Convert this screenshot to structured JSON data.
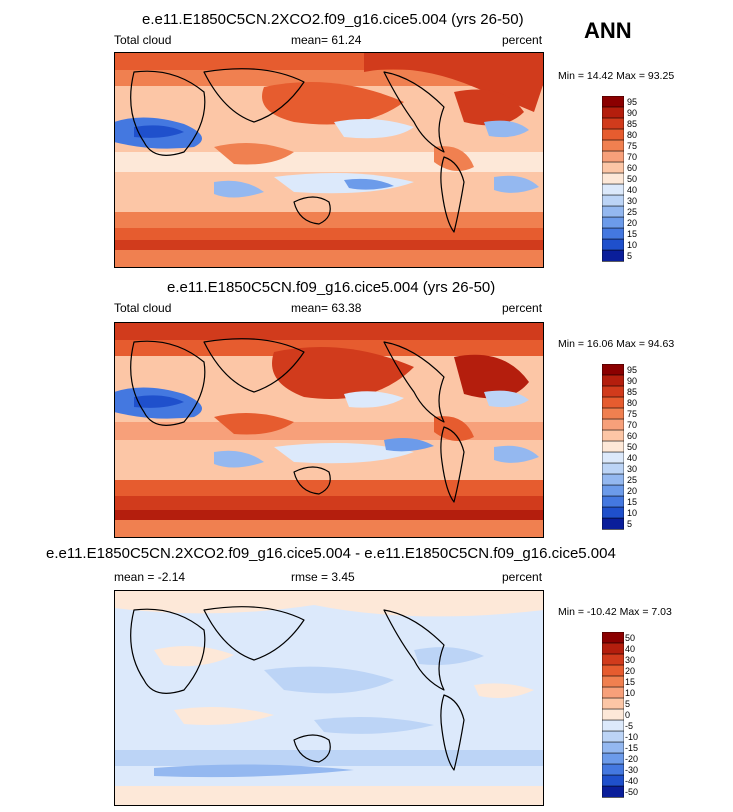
{
  "season": "ANN",
  "chart_data": [
    {
      "type": "heatmap",
      "title": "e.e11.E1850C5CN.2XCO2.f09_g16.cice5.004 (yrs 26-50)",
      "variable": "Total cloud",
      "mean_label": "mean=  61.24",
      "units": "percent",
      "minmax_label": "Min = 14.42 Max = 93.25",
      "min": 14.42,
      "max": 93.25,
      "colorbar_levels": [
        "95",
        "90",
        "85",
        "80",
        "75",
        "70",
        "60",
        "50",
        "40",
        "30",
        "25",
        "20",
        "15",
        "10",
        "5"
      ],
      "colorbar_colors": [
        "#8b0000",
        "#b41e0d",
        "#d13b1c",
        "#e65c2f",
        "#f08050",
        "#f7a07a",
        "#fcc6a6",
        "#fde8d8",
        "#dce9fb",
        "#bcd4f6",
        "#94b8f0",
        "#6c9bea",
        "#4478e0",
        "#1f50cc",
        "#0a1e9a"
      ]
    },
    {
      "type": "heatmap",
      "title": "e.e11.E1850C5CN.f09_g16.cice5.004 (yrs 26-50)",
      "variable": "Total cloud",
      "mean_label": "mean=  63.38",
      "units": "percent",
      "minmax_label": "Min = 16.06 Max = 94.63",
      "min": 16.06,
      "max": 94.63,
      "colorbar_levels": [
        "95",
        "90",
        "85",
        "80",
        "75",
        "70",
        "60",
        "50",
        "40",
        "30",
        "25",
        "20",
        "15",
        "10",
        "5"
      ],
      "colorbar_colors": [
        "#8b0000",
        "#b41e0d",
        "#d13b1c",
        "#e65c2f",
        "#f08050",
        "#f7a07a",
        "#fcc6a6",
        "#fde8d8",
        "#dce9fb",
        "#bcd4f6",
        "#94b8f0",
        "#6c9bea",
        "#4478e0",
        "#1f50cc",
        "#0a1e9a"
      ]
    },
    {
      "type": "heatmap",
      "title": "e.e11.E1850C5CN.2XCO2.f09_g16.cice5.004 - e.e11.E1850C5CN.f09_g16.cice5.004",
      "mean_label": "mean = -2.14",
      "rmse_label": "rmse =  3.45",
      "units": "percent",
      "minmax_label": "Min = -10.42 Max =  7.03",
      "min": -10.42,
      "max": 7.03,
      "colorbar_levels": [
        "50",
        "40",
        "30",
        "20",
        "15",
        "10",
        "5",
        "0",
        "-5",
        "-10",
        "-15",
        "-20",
        "-30",
        "-40",
        "-50"
      ],
      "colorbar_colors": [
        "#8b0000",
        "#b41e0d",
        "#d13b1c",
        "#e65c2f",
        "#f08050",
        "#f7a07a",
        "#fcc6a6",
        "#fde8d8",
        "#dce9fb",
        "#bcd4f6",
        "#94b8f0",
        "#6c9bea",
        "#4478e0",
        "#1f50cc",
        "#0a1e9a"
      ]
    }
  ]
}
